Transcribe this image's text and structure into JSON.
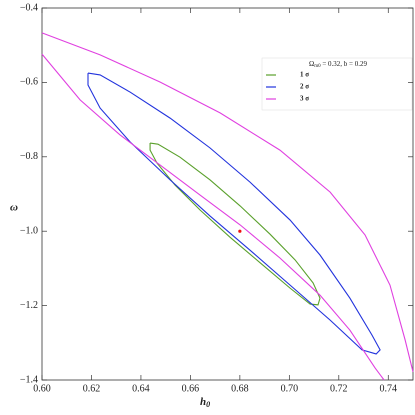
{
  "chart_data": {
    "type": "line",
    "x_label": {
      "symbol": "h",
      "subscript": "0"
    },
    "y_label": "ω",
    "legend_title": {
      "symbol": "Ω",
      "subscript": "m0",
      "text": " = 0.32, b = 0.29"
    },
    "xlim": [
      0.6,
      0.75
    ],
    "ylim": [
      -1.4,
      -0.4
    ],
    "xticks": [
      {
        "value": 0.6,
        "label": "0.60"
      },
      {
        "value": 0.62,
        "label": "0.62"
      },
      {
        "value": 0.64,
        "label": "0.64"
      },
      {
        "value": 0.66,
        "label": "0.66"
      },
      {
        "value": 0.68,
        "label": "0.68"
      },
      {
        "value": 0.7,
        "label": "0.70"
      },
      {
        "value": 0.72,
        "label": "0.72"
      },
      {
        "value": 0.74,
        "label": "0.74"
      }
    ],
    "yticks": [
      {
        "value": -1.4,
        "label": "−1.4"
      },
      {
        "value": -1.2,
        "label": "−1.2"
      },
      {
        "value": -1.0,
        "label": "−1.0"
      },
      {
        "value": -0.8,
        "label": "−0.8"
      },
      {
        "value": -0.6,
        "label": "−0.6"
      },
      {
        "value": -0.4,
        "label": "−0.4"
      }
    ],
    "series": [
      {
        "name": "1 σ",
        "color": "#5aa02c",
        "x": [
          0.6437,
          0.6469,
          0.6558,
          0.6679,
          0.6801,
          0.6922,
          0.7023,
          0.7096,
          0.7124,
          0.7116,
          0.7084,
          0.7003,
          0.6882,
          0.676,
          0.6639,
          0.6538,
          0.6465,
          0.6437,
          0.6437
        ],
        "values": [
          -0.763,
          -0.766,
          -0.801,
          -0.862,
          -0.932,
          -1.008,
          -1.077,
          -1.139,
          -1.18,
          -1.198,
          -1.196,
          -1.153,
          -1.085,
          -1.016,
          -0.943,
          -0.876,
          -0.817,
          -0.782,
          -0.763
        ]
      },
      {
        "name": "2 σ",
        "color": "#2233dd",
        "x": [
          0.6186,
          0.6235,
          0.6356,
          0.6518,
          0.6679,
          0.6841,
          0.7003,
          0.7124,
          0.7245,
          0.7334,
          0.7367,
          0.7351,
          0.7294,
          0.7165,
          0.7003,
          0.6841,
          0.6679,
          0.6518,
          0.6356,
          0.6235,
          0.6186,
          0.6186
        ],
        "values": [
          -0.575,
          -0.58,
          -0.626,
          -0.696,
          -0.776,
          -0.868,
          -0.97,
          -1.064,
          -1.18,
          -1.279,
          -1.319,
          -1.33,
          -1.319,
          -1.239,
          -1.145,
          -1.051,
          -0.959,
          -0.862,
          -0.76,
          -0.669,
          -0.607,
          -0.575
        ]
      },
      {
        "name": "3 σ",
        "color": "#e040e0",
        "x": [
          0.6,
          0.6235,
          0.6477,
          0.672,
          0.6962,
          0.7165,
          0.7306,
          0.7407,
          0.7468,
          0.75,
          null,
          0.6,
          0.6154,
          0.6315,
          0.6477,
          0.6639,
          0.6801,
          0.6962,
          0.7124,
          0.7245,
          0.7347,
          0.7383
        ],
        "values": [
          -0.467,
          -0.526,
          -0.599,
          -0.682,
          -0.782,
          -0.895,
          -1.01,
          -1.145,
          -1.292,
          -1.378,
          null,
          -0.524,
          -0.647,
          -0.741,
          -0.822,
          -0.903,
          -0.983,
          -1.072,
          -1.172,
          -1.266,
          -1.368,
          -1.4
        ]
      }
    ],
    "points": {
      "color": "#ee1111",
      "x": [
        0.68
      ],
      "values": [
        -1.0
      ]
    }
  }
}
